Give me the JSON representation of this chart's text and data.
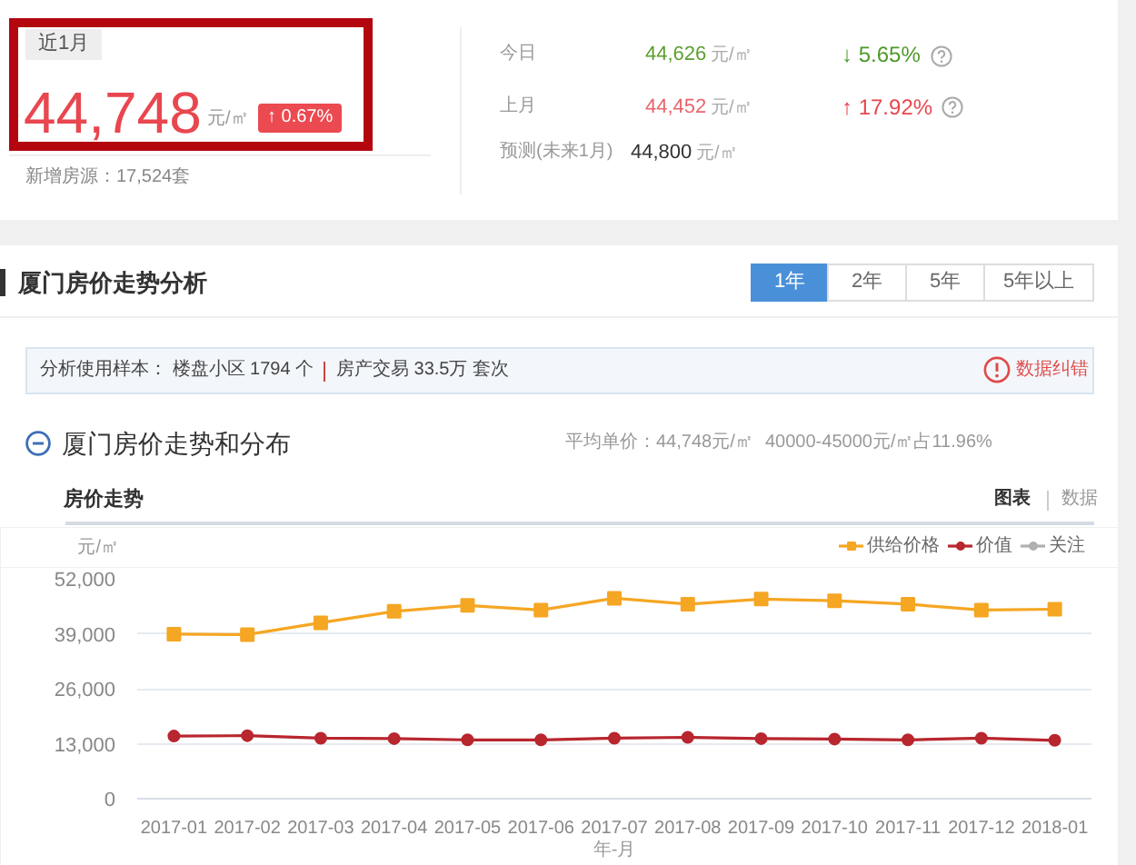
{
  "chart_data": [
    {
      "type": "other",
      "annotations": [
        "近1月",
        "44,748",
        "元/㎡",
        "↑ 0.67%",
        "新增房源：17,524套",
        "今日",
        "44,626",
        "元/㎡",
        "↓ 5.65%",
        "上月",
        "44,452",
        "元/㎡",
        "↑ 17.92%",
        "预测(未来1月)",
        "44,800",
        "元/㎡",
        "厦门房价走势分析",
        "1年",
        "2年",
        "5年",
        "5年以上",
        "分析使用样本： 楼盘小区 1794 个",
        "房产交易 33.5万 套次",
        "数据纠错",
        "厦门房价走势和分布",
        "平均单价：44,748元/㎡",
        "40000-45000元/㎡占11.96%"
      ]
    },
    {
      "type": "line",
      "title": "房价走势",
      "annotations": [
        "图表",
        "数据"
      ],
      "xlabel": "年-月",
      "ylabel": "元/㎡",
      "categories": [
        "2017-01",
        "2017-02",
        "2017-03",
        "2017-04",
        "2017-05",
        "2017-06",
        "2017-07",
        "2017-08",
        "2017-09",
        "2017-10",
        "2017-11",
        "2017-12",
        "2018-01"
      ],
      "series": [
        {
          "name": "供给价格",
          "color": "#f5a623",
          "marker": "square",
          "values": [
            38900,
            38800,
            41600,
            44300,
            45700,
            44600,
            47400,
            46000,
            47200,
            46800,
            46000,
            44600,
            44800
          ]
        },
        {
          "name": "价值",
          "color": "#b8262e",
          "marker": "circle",
          "values": [
            14800,
            14900,
            14300,
            14200,
            13900,
            13900,
            14300,
            14500,
            14200,
            14100,
            13900,
            14300,
            13800
          ]
        },
        {
          "name": "关注",
          "color": "#b0b0b0",
          "marker": "circle",
          "values": [
            null,
            null,
            null,
            null,
            null,
            null,
            null,
            null,
            null,
            null,
            null,
            null,
            null
          ]
        }
      ],
      "ylim": [
        0,
        52000
      ],
      "yticks": [
        0,
        {
          "value": 13000,
          "label": "13,000"
        },
        {
          "value": 26000,
          "label": "26,000"
        },
        {
          "value": 39000,
          "label": "39,000"
        },
        {
          "value": 52000,
          "label": "52,000"
        }
      ],
      "grid": "y",
      "legend": "top right",
      "line_style": "solid"
    }
  ]
}
